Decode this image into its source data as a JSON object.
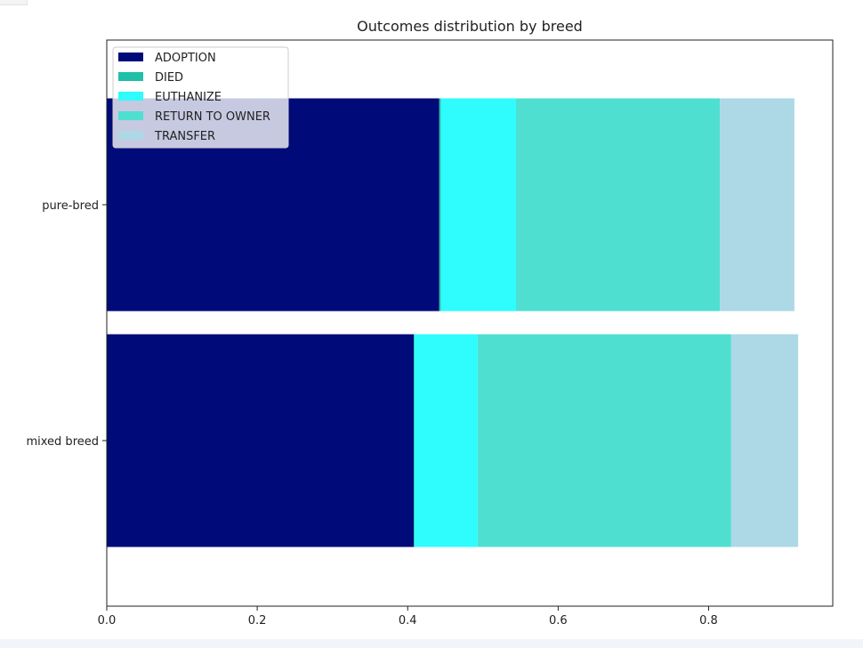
{
  "chart_data": {
    "type": "bar",
    "orientation": "horizontal",
    "stacked": true,
    "title": "Outcomes distribution by breed",
    "categories": [
      "mixed breed",
      "pure-bred"
    ],
    "series": [
      {
        "name": "ADOPTION",
        "color": "#000a78",
        "values": [
          0.408,
          0.442
        ]
      },
      {
        "name": "DIED",
        "color": "#20c0a8",
        "values": [
          0.001,
          0.002
        ]
      },
      {
        "name": "EUTHANIZE",
        "color": "#2ffcfc",
        "values": [
          0.084,
          0.1
        ]
      },
      {
        "name": "RETURN TO OWNER",
        "color": "#4fdfd1",
        "values": [
          0.337,
          0.271
        ]
      },
      {
        "name": "TRANSFER",
        "color": "#add8e6",
        "values": [
          0.089,
          0.099
        ]
      }
    ],
    "xlim": [
      0,
      0.965
    ],
    "xticks": [
      "0.0",
      "0.2",
      "0.4",
      "0.6",
      "0.8"
    ],
    "xlabel": "",
    "ylabel": "",
    "grid": false,
    "legend_position": "top-left"
  }
}
